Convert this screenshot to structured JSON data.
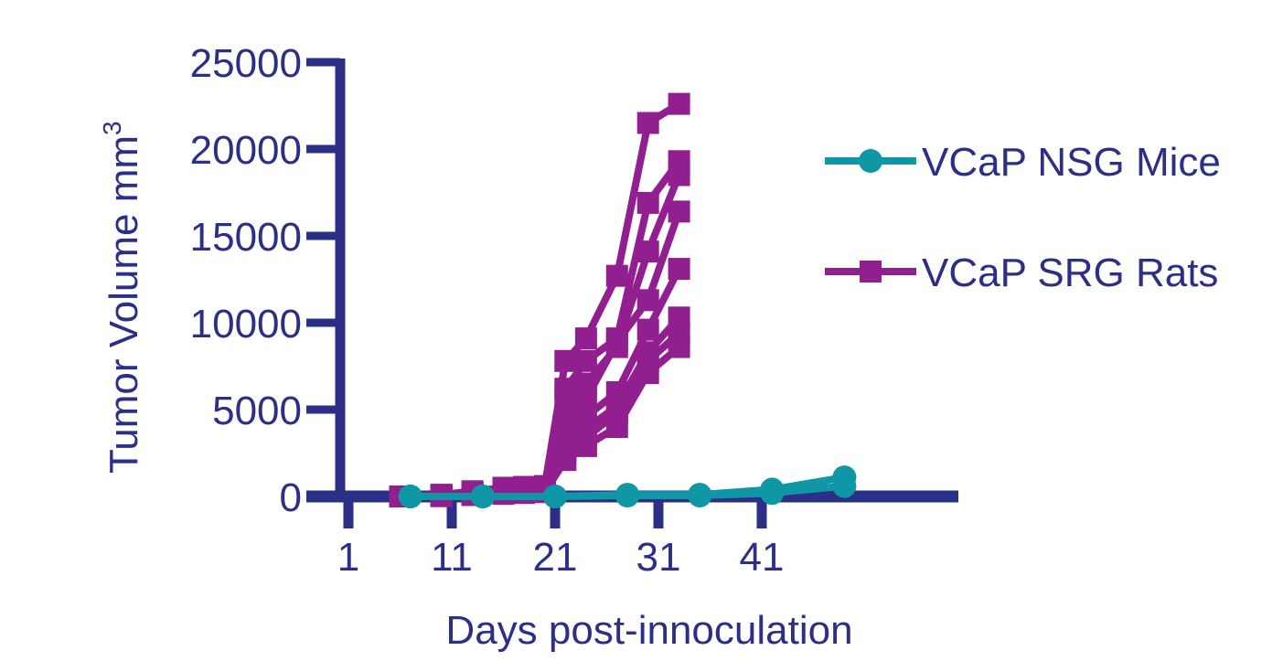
{
  "chart_data": {
    "type": "line",
    "xlabel": "Days post-innoculation",
    "ylabel": "Tumor Volume mm",
    "ylabel_superscript": "3",
    "ylim": [
      0,
      25000
    ],
    "xlim": [
      1,
      60
    ],
    "xticks": [
      1,
      11,
      21,
      31,
      41
    ],
    "yticks": [
      0,
      5000,
      10000,
      15000,
      20000,
      25000
    ],
    "legend_position": "right",
    "colors": {
      "axis": "#2b2f86",
      "mice": "#0f97a6",
      "rats": "#921f8f"
    },
    "series": [
      {
        "name": "VCaP SRG Rats",
        "marker": "square",
        "color": "#921f8f",
        "animals": [
          {
            "x": [
              6,
              10,
              13,
              16,
              18,
              20,
              22,
              24,
              27,
              30,
              33
            ],
            "y": [
              0,
              100,
              300,
              500,
              550,
              600,
              7800,
              9100,
              12700,
              21500,
              22600
            ]
          },
          {
            "x": [
              6,
              10,
              13,
              16,
              18,
              20,
              22,
              24,
              27,
              30,
              33
            ],
            "y": [
              0,
              80,
              250,
              450,
              500,
              550,
              6200,
              7800,
              9100,
              16900,
              19300
            ]
          },
          {
            "x": [
              6,
              10,
              13,
              16,
              18,
              20,
              22,
              24,
              27,
              30,
              33
            ],
            "y": [
              0,
              60,
              200,
              400,
              450,
              500,
              5800,
              6500,
              8600,
              14100,
              18500
            ]
          },
          {
            "x": [
              6,
              10,
              13,
              16,
              18,
              20,
              22,
              24,
              27,
              30,
              33
            ],
            "y": [
              0,
              50,
              180,
              350,
              400,
              450,
              4600,
              5600,
              8900,
              11300,
              16400
            ]
          },
          {
            "x": [
              6,
              10,
              13,
              16,
              18,
              20,
              22,
              24,
              27,
              30,
              33
            ],
            "y": [
              0,
              40,
              150,
              300,
              350,
              400,
              3900,
              4600,
              6000,
              9600,
              13100
            ]
          },
          {
            "x": [
              6,
              10,
              13,
              16,
              18,
              20,
              22,
              24,
              27,
              30,
              33
            ],
            "y": [
              0,
              30,
              120,
              250,
              300,
              350,
              3100,
              3900,
              5200,
              8300,
              10300
            ]
          },
          {
            "x": [
              6,
              10,
              13,
              16,
              18,
              20,
              22,
              24,
              27,
              30,
              33
            ],
            "y": [
              0,
              20,
              100,
              200,
              250,
              300,
              2400,
              2900,
              4000,
              7100,
              8600
            ]
          },
          {
            "x": [
              6,
              10,
              13,
              16,
              18,
              20,
              22,
              24,
              27,
              30,
              33
            ],
            "y": [
              0,
              20,
              80,
              150,
              200,
              250,
              2100,
              3400,
              4800,
              7800,
              9400
            ]
          }
        ]
      },
      {
        "name": "VCaP NSG Mice",
        "marker": "circle",
        "color": "#0f97a6",
        "animals": [
          {
            "x": [
              7,
              14,
              21,
              28,
              35,
              42,
              49
            ],
            "y": [
              0,
              0,
              0,
              100,
              100,
              400,
              1100
            ]
          },
          {
            "x": [
              7,
              14,
              21,
              28,
              35,
              42,
              49
            ],
            "y": [
              0,
              0,
              0,
              50,
              50,
              200,
              600
            ]
          }
        ]
      }
    ],
    "legend": [
      {
        "label": "VCaP NSG Mice",
        "marker": "circle",
        "color": "#0f97a6"
      },
      {
        "label": "VCaP SRG Rats",
        "marker": "square",
        "color": "#921f8f"
      }
    ]
  }
}
